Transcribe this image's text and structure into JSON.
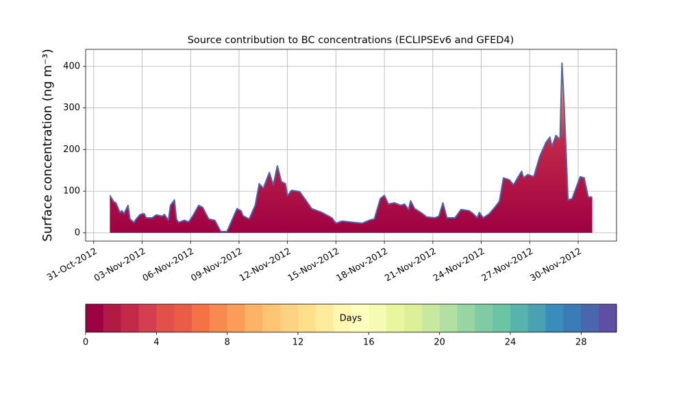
{
  "chart_data": {
    "type": "area",
    "title": "Source contribution to BC concentrations (ECLIPSEv6 and GFED4)",
    "y_label": "Surface concentration (ng m⁻³)",
    "x": [
      "2012-11-01T00:00",
      "2012-11-01T06:00",
      "2012-11-01T09:00",
      "2012-11-01T15:00",
      "2012-11-01T18:00",
      "2012-11-01T21:00",
      "2012-11-02T03:00",
      "2012-11-02T06:00",
      "2012-11-02T12:00",
      "2012-11-02T15:00",
      "2012-11-02T21:00",
      "2012-11-03T03:00",
      "2012-11-03T06:00",
      "2012-11-03T15:00",
      "2012-11-03T21:00",
      "2012-11-04T06:00",
      "2012-11-04T09:00",
      "2012-11-04T15:00",
      "2012-11-04T18:00",
      "2012-11-05T00:00",
      "2012-11-05T03:00",
      "2012-11-05T06:00",
      "2012-11-05T15:00",
      "2012-11-05T21:00",
      "2012-11-06T03:00",
      "2012-11-06T12:00",
      "2012-11-06T18:00",
      "2012-11-07T03:00",
      "2012-11-07T12:00",
      "2012-11-07T21:00",
      "2012-11-08T06:00",
      "2012-11-08T12:00",
      "2012-11-08T21:00",
      "2012-11-09T03:00",
      "2012-11-09T06:00",
      "2012-11-09T15:00",
      "2012-11-10T00:00",
      "2012-11-10T06:00",
      "2012-11-10T12:00",
      "2012-11-10T21:00",
      "2012-11-11T03:00",
      "2012-11-11T09:00",
      "2012-11-11T15:00",
      "2012-11-11T21:00",
      "2012-11-12T00:00",
      "2012-11-12T06:00",
      "2012-11-12T18:00",
      "2012-11-13T03:00",
      "2012-11-13T12:00",
      "2012-11-14T03:00",
      "2012-11-14T18:00",
      "2012-11-15T00:00",
      "2012-11-15T09:00",
      "2012-11-16T03:00",
      "2012-11-16T15:00",
      "2012-11-17T03:00",
      "2012-11-17T09:00",
      "2012-11-17T18:00",
      "2012-11-18T00:00",
      "2012-11-18T06:00",
      "2012-11-18T15:00",
      "2012-11-19T00:00",
      "2012-11-19T06:00",
      "2012-11-19T12:00",
      "2012-11-19T15:00",
      "2012-11-19T21:00",
      "2012-11-20T06:00",
      "2012-11-20T15:00",
      "2012-11-21T03:00",
      "2012-11-21T09:00",
      "2012-11-21T15:00",
      "2012-11-21T21:00",
      "2012-11-22T09:00",
      "2012-11-22T18:00",
      "2012-11-23T06:00",
      "2012-11-23T12:00",
      "2012-11-23T18:00",
      "2012-11-23T21:00",
      "2012-11-24T03:00",
      "2012-11-24T12:00",
      "2012-11-24T21:00",
      "2012-11-25T03:00",
      "2012-11-25T09:00",
      "2012-11-25T18:00",
      "2012-11-26T00:00",
      "2012-11-26T06:00",
      "2012-11-26T12:00",
      "2012-11-26T15:00",
      "2012-11-26T21:00",
      "2012-11-27T06:00",
      "2012-11-27T15:00",
      "2012-11-28T00:00",
      "2012-11-28T06:00",
      "2012-11-28T09:00",
      "2012-11-28T15:00",
      "2012-11-28T21:00",
      "2012-11-29T00:00",
      "2012-11-29T03:00",
      "2012-11-29T09:00",
      "2012-11-29T15:00",
      "2012-11-30T03:00",
      "2012-11-30T09:00",
      "2012-11-30T15:00",
      "2012-11-30T21:00"
    ],
    "values": [
      90,
      74,
      72,
      49,
      53,
      46,
      66,
      33,
      25,
      33,
      44,
      46,
      36,
      36,
      43,
      40,
      44,
      30,
      66,
      79,
      33,
      25,
      30,
      26,
      40,
      66,
      61,
      33,
      30,
      3,
      3,
      25,
      58,
      53,
      41,
      33,
      66,
      118,
      107,
      145,
      115,
      161,
      123,
      118,
      89,
      102,
      99,
      79,
      58,
      49,
      36,
      23,
      28,
      25,
      23,
      31,
      33,
      82,
      90,
      69,
      72,
      66,
      69,
      56,
      77,
      58,
      49,
      38,
      36,
      40,
      72,
      36,
      36,
      56,
      53,
      46,
      36,
      49,
      36,
      46,
      63,
      76,
      132,
      127,
      115,
      132,
      148,
      132,
      140,
      135,
      184,
      217,
      230,
      207,
      234,
      224,
      408,
      313,
      79,
      82,
      135,
      132,
      86,
      86
    ],
    "line_color": "#4a67ae",
    "xlim": [
      "2012-10-30T12:00",
      "2012-12-02T09:00"
    ],
    "xticks": [
      {
        "value": "2012-10-31T00:00",
        "label": "31-Oct-2012"
      },
      {
        "value": "2012-11-03T00:00",
        "label": "03-Nov-2012"
      },
      {
        "value": "2012-11-06T00:00",
        "label": "06-Nov-2012"
      },
      {
        "value": "2012-11-09T00:00",
        "label": "09-Nov-2012"
      },
      {
        "value": "2012-11-12T00:00",
        "label": "12-Nov-2012"
      },
      {
        "value": "2012-11-15T00:00",
        "label": "15-Nov-2012"
      },
      {
        "value": "2012-11-18T00:00",
        "label": "18-Nov-2012"
      },
      {
        "value": "2012-11-21T00:00",
        "label": "21-Nov-2012"
      },
      {
        "value": "2012-11-24T00:00",
        "label": "24-Nov-2012"
      },
      {
        "value": "2012-11-27T00:00",
        "label": "27-Nov-2012"
      },
      {
        "value": "2012-11-30T00:00",
        "label": "30-Nov-2012"
      }
    ],
    "ylim": [
      -20,
      441
    ],
    "yticks": [
      0,
      100,
      200,
      300,
      400
    ],
    "grid": true,
    "colorbar": {
      "label": "Days",
      "lim": [
        0,
        30
      ],
      "ticks": [
        0,
        4,
        8,
        12,
        16,
        20,
        24,
        28
      ],
      "colors": [
        "#9e0142",
        "#b11a45",
        "#c32949",
        "#d53e4f",
        "#e0514a",
        "#e95d47",
        "#f47245",
        "#f68a51",
        "#f99d59",
        "#fdb366",
        "#fdc474",
        "#fed283",
        "#fee08b",
        "#feeb9e",
        "#fff6b1",
        "#ffffbf",
        "#f5fbb2",
        "#e9f69e",
        "#dcf09a",
        "#c7e89e",
        "#b2e0a2",
        "#98d5a4",
        "#80cba4",
        "#6bc4a4",
        "#57b3ab",
        "#4aa1b1",
        "#3a8cba",
        "#3a7ab7",
        "#4a67ae",
        "#5e4fa2"
      ]
    }
  }
}
